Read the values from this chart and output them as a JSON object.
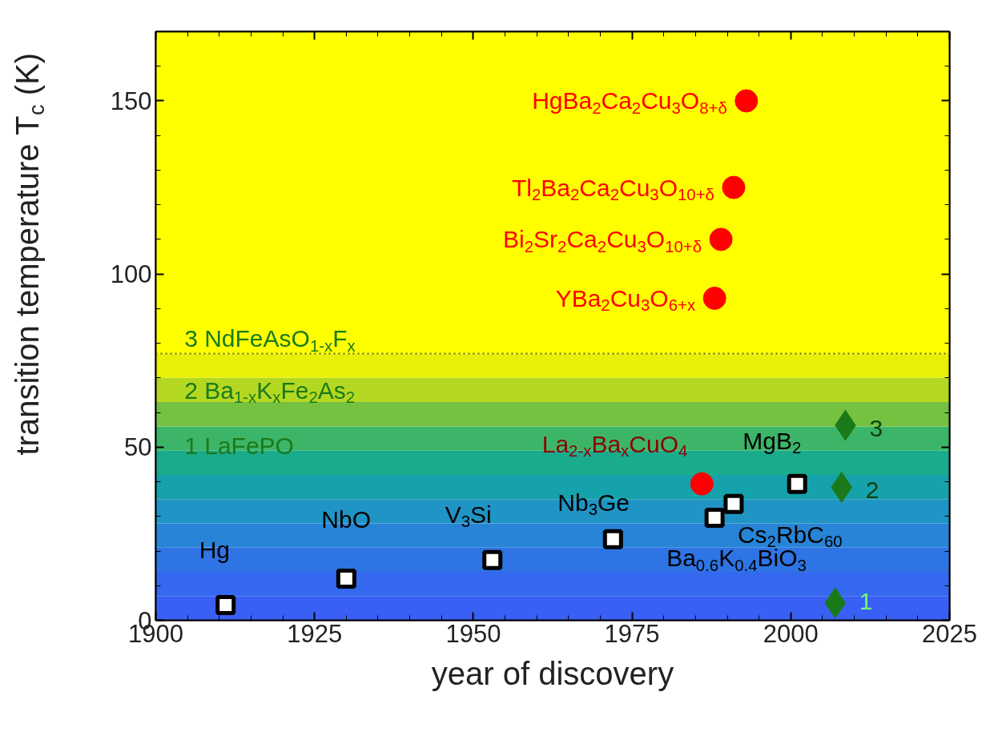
{
  "chart_data": {
    "type": "scatter",
    "xlabel": "year of discovery",
    "ylabel": "transition temperature T$_{c}$ (K)",
    "xlim": [
      1900,
      2025
    ],
    "ylim": [
      0,
      170
    ],
    "xticks": [
      1900,
      1925,
      1950,
      1975,
      2000,
      2025
    ],
    "yticks": [
      0,
      50,
      100,
      150
    ],
    "grid": false,
    "legend": false,
    "series": [
      {
        "name": "Hg",
        "marker": "square",
        "color": "#000000",
        "x": [
          1911
        ],
        "values": [
          4.4
        ]
      },
      {
        "name": "NbO",
        "marker": "square",
        "color": "#000000",
        "x": [
          1930
        ],
        "values": [
          12
        ]
      },
      {
        "name": "V$_{3}$Si",
        "marker": "square",
        "color": "#000000",
        "x": [
          1953
        ],
        "values": [
          17.4
        ]
      },
      {
        "name": "Nb$_{3}$Ge",
        "marker": "square",
        "color": "#000000",
        "x": [
          1972
        ],
        "values": [
          23.4
        ]
      },
      {
        "name": "Ba$_{0.6}$K$_{0.4}$BiO$_{3}$",
        "marker": "square",
        "color": "#000000",
        "x": [
          1988
        ],
        "values": [
          29.6
        ]
      },
      {
        "name": "Cs$_{2}$RbC$_{60}$",
        "marker": "square",
        "color": "#000000",
        "x": [
          1991
        ],
        "values": [
          33.6
        ]
      },
      {
        "name": "MgB$_{2}$",
        "marker": "square",
        "color": "#000000",
        "x": [
          2001
        ],
        "values": [
          39.4
        ]
      },
      {
        "name": "La$_{2-x}$Ba$_{x}$CuO$_{4}$",
        "marker": "circle",
        "color": "#ff0000",
        "x": [
          1986
        ],
        "values": [
          39.4
        ]
      },
      {
        "name": "YBa$_{2}$Cu$_{3}$O$_{6+x}$",
        "marker": "circle",
        "color": "#ff0000",
        "x": [
          1988
        ],
        "values": [
          93
        ]
      },
      {
        "name": "Bi$_{2}$Sr$_{2}$Ca$_{2}$Cu$_{3}$O$_{10+δ}$",
        "marker": "circle",
        "color": "#ff0000",
        "x": [
          1989
        ],
        "values": [
          110
        ]
      },
      {
        "name": "Tl$_{2}$Ba$_{2}$Ca$_{2}$Cu$_{3}$O$_{10+δ}$",
        "marker": "circle",
        "color": "#ff0000",
        "x": [
          1991
        ],
        "values": [
          125
        ]
      },
      {
        "name": "HgBa$_{2}$Ca$_{2}$Cu$_{3}$O$_{8+δ}$",
        "marker": "circle",
        "color": "#ff0000",
        "x": [
          1993
        ],
        "values": [
          150
        ]
      },
      {
        "name": "1",
        "marker": "diamond",
        "color": "#1a7a1a",
        "x": [
          2007
        ],
        "values": [
          5
        ]
      },
      {
        "name": "2",
        "marker": "diamond",
        "color": "#1a7a1a",
        "x": [
          2008
        ],
        "values": [
          38.4
        ]
      },
      {
        "name": "3",
        "marker": "diamond",
        "color": "#1a7a1a",
        "x": [
          2008.6
        ],
        "values": [
          56.3
        ]
      }
    ],
    "ref_lines": [
      {
        "axis": "y",
        "value": 77,
        "color": "#666600",
        "line_style": "dotted"
      }
    ],
    "bands": [
      {
        "axis": "y",
        "from": 0,
        "to": 7,
        "color": "#3a5ff5"
      },
      {
        "axis": "y",
        "from": 7,
        "to": 14,
        "color": "#3468ee"
      },
      {
        "axis": "y",
        "from": 14,
        "to": 21,
        "color": "#2e74e4"
      },
      {
        "axis": "y",
        "from": 21,
        "to": 28,
        "color": "#2884d6"
      },
      {
        "axis": "y",
        "from": 28,
        "to": 35,
        "color": "#2094c4"
      },
      {
        "axis": "y",
        "from": 35,
        "to": 42,
        "color": "#16a2aa"
      },
      {
        "axis": "y",
        "from": 42,
        "to": 49,
        "color": "#1aab8c"
      },
      {
        "axis": "y",
        "from": 49,
        "to": 56,
        "color": "#3cb568"
      },
      {
        "axis": "y",
        "from": 56,
        "to": 63,
        "color": "#74c240"
      },
      {
        "axis": "y",
        "from": 63,
        "to": 70,
        "color": "#b4d822"
      },
      {
        "axis": "y",
        "from": 70,
        "to": 77,
        "color": "#e8f00a"
      },
      {
        "axis": "y",
        "from": 77,
        "to": 170,
        "color": "#ffff00"
      }
    ],
    "annotations": [
      "3 NdFeAsO$_{1-x}$F$_{x}$",
      "2 Ba$_{1-x}$K$_{x}$Fe$_{2}$As$_{2}$",
      "1 LaFePO"
    ]
  }
}
